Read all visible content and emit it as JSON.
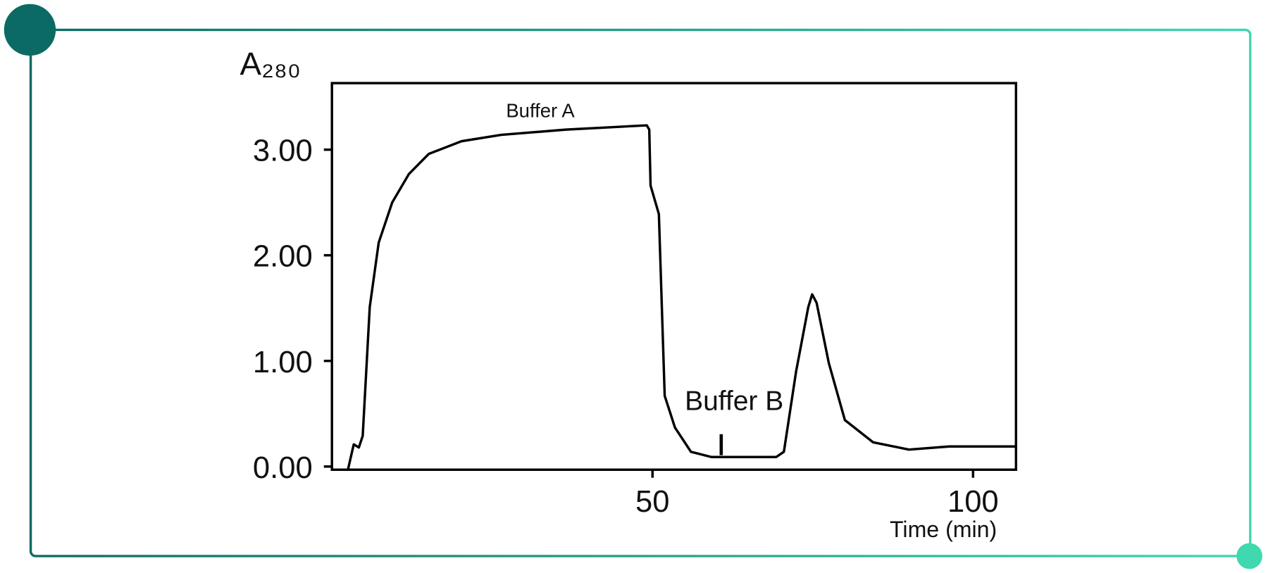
{
  "chart_data": {
    "type": "line",
    "ylabel": "A₂₈₀",
    "xlabel": "Time (min)",
    "annotations": [
      "Buffer A",
      "Buffer B"
    ],
    "x": [
      2.5,
      3.4,
      4.2,
      4.8,
      5.9,
      7.3,
      9.4,
      12,
      15.1,
      20.2,
      26.4,
      36.5,
      49.1,
      49.5,
      49.7,
      51,
      51.9,
      53.5,
      56,
      59.2,
      69.3,
      70.5,
      72.4,
      74.3,
      74.9,
      75.6,
      77.5,
      80,
      84.4,
      90,
      96.3,
      106.7
    ],
    "values": [
      -0.03,
      0.21,
      0.18,
      0.29,
      1.51,
      2.12,
      2.5,
      2.77,
      2.96,
      3.08,
      3.14,
      3.19,
      3.23,
      3.19,
      2.66,
      2.39,
      0.67,
      0.37,
      0.14,
      0.09,
      0.09,
      0.14,
      0.9,
      1.51,
      1.63,
      1.55,
      0.98,
      0.44,
      0.23,
      0.16,
      0.19,
      0.19
    ],
    "color": "#000000",
    "xlim": [
      0,
      106.7
    ],
    "ylim": [
      -0.03,
      3.63
    ],
    "xticks": [
      50,
      100
    ],
    "yticks": [
      {
        "value": 0,
        "label": "0.00"
      },
      {
        "value": 1,
        "label": "1.00"
      },
      {
        "value": 2,
        "label": "2.00"
      },
      {
        "value": 3,
        "label": "3.00"
      }
    ],
    "grid": false
  }
}
